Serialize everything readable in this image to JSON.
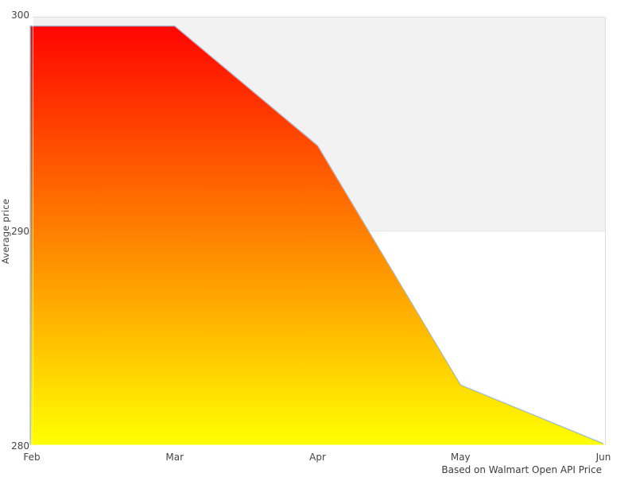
{
  "chart_data": {
    "type": "area",
    "title": "",
    "x": [
      "Feb",
      "Mar",
      "Apr",
      "May",
      "Jun"
    ],
    "series": [
      {
        "name": "Average price",
        "values": [
          299.6,
          299.6,
          294.0,
          282.8,
          280.05
        ]
      }
    ],
    "xlabel": "",
    "ylabel": "Average price",
    "yticks": [
      "280",
      "290",
      "300"
    ],
    "ytick_values": [
      280,
      290,
      300
    ],
    "ylim": [
      280,
      300
    ],
    "plot_band": {
      "from": 290,
      "to": 300,
      "color": "#f2f2f2"
    },
    "caption": "Based on Walmart Open API Price",
    "legend": "none",
    "grid": "off",
    "colors": {
      "area_gradient_top": "#ff0000",
      "area_gradient_bottom": "#ffff00",
      "line": "#9fbbd8",
      "band_fill": "#f2f2f2",
      "plot_border": "#dcdcdc",
      "band_bottom_border": "#e3e3e3",
      "text": "#444444"
    }
  }
}
